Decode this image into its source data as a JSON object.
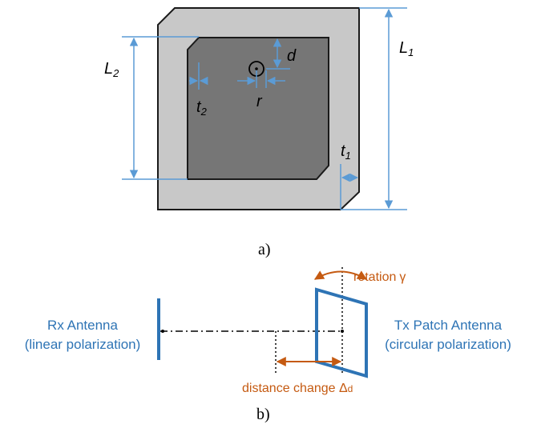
{
  "part_a": {
    "caption": "a)",
    "labels": {
      "L1": "L",
      "L1_sub": "1",
      "L2": "L",
      "L2_sub": "2",
      "t1": "t",
      "t1_sub": "1",
      "t2": "t",
      "t2_sub": "2",
      "d": "d",
      "r": "r"
    }
  },
  "part_b": {
    "caption": "b)",
    "rx_line1": "Rx Antenna",
    "rx_line2": "(linear polarization)",
    "tx_line1": "Tx Patch Antenna",
    "tx_line2": "(circular polarization)",
    "rotation_label": "rotation",
    "rotation_symbol": "γ",
    "distance_label": "distance change ",
    "distance_symbol": "Δ",
    "distance_sub": "d"
  },
  "colors": {
    "outer_gray": "#c8c8c8",
    "inner_gray": "#767676",
    "blue": "#2e74b5",
    "dim_blue": "#5b9bd5",
    "orange": "#c55a11"
  }
}
